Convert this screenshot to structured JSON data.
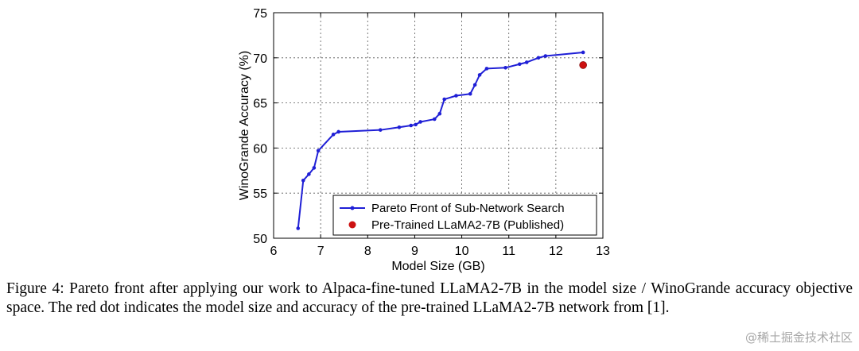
{
  "chart_data": {
    "type": "line",
    "title": "",
    "xlabel": "Model Size (GB)",
    "ylabel": "WinoGrande Accuracy (%)",
    "xlim": [
      6,
      13
    ],
    "ylim": [
      50,
      75
    ],
    "xticks": [
      6,
      7,
      8,
      9,
      10,
      11,
      12,
      13
    ],
    "yticks": [
      50,
      55,
      60,
      65,
      70,
      75
    ],
    "grid": true,
    "legend_position": "bottom-right",
    "series": [
      {
        "name": "Pareto Front of Sub-Network Search",
        "color": "#1f1fd6",
        "x": [
          6.52,
          6.63,
          6.75,
          6.86,
          6.95,
          7.27,
          7.38,
          8.27,
          8.67,
          8.92,
          9.02,
          9.12,
          9.42,
          9.53,
          9.63,
          9.88,
          10.18,
          10.28,
          10.38,
          10.53,
          10.93,
          11.23,
          11.38,
          11.63,
          11.78,
          12.58
        ],
        "y": [
          51.1,
          56.4,
          57.1,
          57.8,
          59.7,
          61.5,
          61.8,
          62.0,
          62.3,
          62.5,
          62.6,
          62.9,
          63.2,
          63.8,
          65.4,
          65.8,
          66.0,
          67.0,
          68.1,
          68.8,
          68.9,
          69.3,
          69.5,
          70.0,
          70.2,
          70.6
        ]
      },
      {
        "name": "Pre-Trained LLaMA2-7B (Published)",
        "color": "#cc1111",
        "x": [
          12.58
        ],
        "y": [
          69.2
        ]
      }
    ]
  },
  "caption": "Figure 4: Pareto front after applying our work to Alpaca-fine-tuned LLaMA2-7B in the model size / WinoGrande accuracy objective space. The red dot indicates the model size and accuracy of the pre-trained LLaMA2-7B network from [1].",
  "watermark": "@稀土掘金技术社区"
}
